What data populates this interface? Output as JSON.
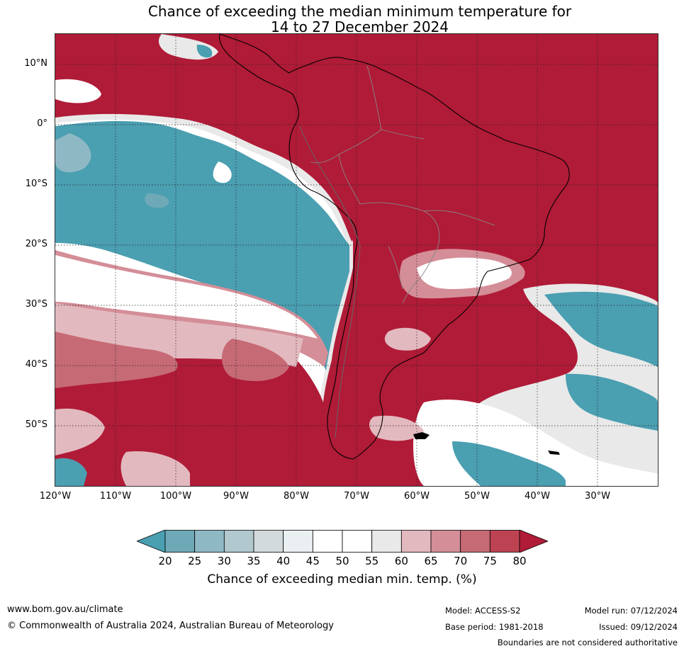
{
  "title": {
    "line1": "Chance of exceeding the median minimum temperature for",
    "line2": "14 to 27 December 2024"
  },
  "map": {
    "lat_labels": [
      "10°N",
      "0°",
      "10°S",
      "20°S",
      "30°S",
      "40°S",
      "50°S"
    ],
    "lon_labels": [
      "120°W",
      "110°W",
      "100°W",
      "90°W",
      "80°W",
      "70°W",
      "60°W",
      "50°W",
      "40°W",
      "30°W"
    ]
  },
  "colorbar": {
    "ticks": [
      "20",
      "25",
      "30",
      "35",
      "40",
      "45",
      "50",
      "55",
      "60",
      "65",
      "70",
      "75",
      "80"
    ],
    "colors": [
      "#4a9fb1",
      "#6fa9b7",
      "#8fb8c5",
      "#b0c8ce",
      "#d3dadc",
      "#eaf0f2",
      "#ffffff",
      "#ffffff",
      "#e9e9e9",
      "#e2b9bf",
      "#d48e98",
      "#c66a76",
      "#bd4352",
      "#b01b37"
    ],
    "label": "Chance of exceeding median min. temp. (%)"
  },
  "footer": {
    "url": "www.bom.gov.au/climate",
    "copyright": "© Commonwealth of Australia 2024, Australian Bureau of Meteorology",
    "model": "Model: ACCESS-S2",
    "base_period": "Base period: 1981-2018",
    "model_run": "Model run: 07/12/2024",
    "issued": "Issued: 09/12/2024",
    "disclaimer": "Boundaries are not considered authoritative"
  }
}
